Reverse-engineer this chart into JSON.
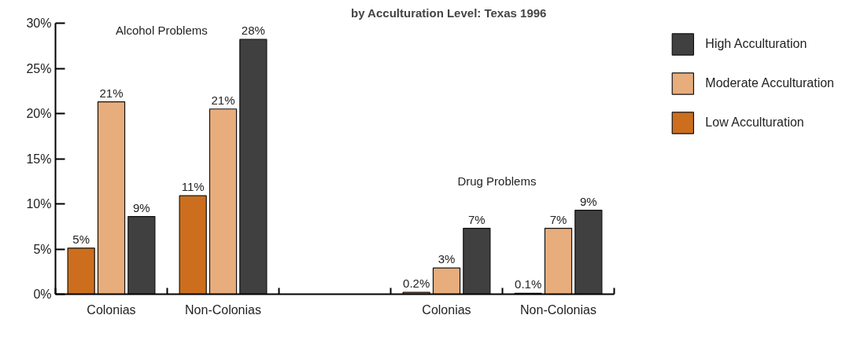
{
  "chart_data": {
    "type": "bar",
    "title": "by Acculturation Level: Texas 1996",
    "categories": [
      "Colonias",
      "Non-Colonias",
      null,
      "Colonias",
      "Non-Colonias"
    ],
    "series": [
      {
        "name": "Low Acculturation",
        "color": "#cc6e1e",
        "values": [
          5.1,
          10.9,
          null,
          0.2,
          0.1
        ],
        "value_labels": [
          "5%",
          "11%",
          null,
          "0.2%",
          "0.1%"
        ]
      },
      {
        "name": "Moderate Acculturation",
        "color": "#e8ad7c",
        "values": [
          21.3,
          20.5,
          null,
          2.9,
          7.3
        ],
        "value_labels": [
          "21%",
          "21%",
          null,
          "3%",
          "7%"
        ]
      },
      {
        "name": "High Acculturation",
        "color": "#404040",
        "values": [
          8.6,
          28.2,
          null,
          7.3,
          9.3
        ],
        "value_labels": [
          "9%",
          "28%",
          null,
          "7%",
          "9%"
        ]
      }
    ],
    "ylim": [
      0,
      30
    ],
    "yticks": [
      {
        "value": 0,
        "label": "0%"
      },
      {
        "value": 5,
        "label": "5%"
      },
      {
        "value": 10,
        "label": "10%"
      },
      {
        "value": 15,
        "label": "15%"
      },
      {
        "value": 20,
        "label": "20%"
      },
      {
        "value": 25,
        "label": "25%"
      },
      {
        "value": 30,
        "label": "30%"
      }
    ],
    "annotations": [
      "Alcohol Problems",
      "Drug Problems"
    ],
    "legend": "top right",
    "grid": false
  }
}
